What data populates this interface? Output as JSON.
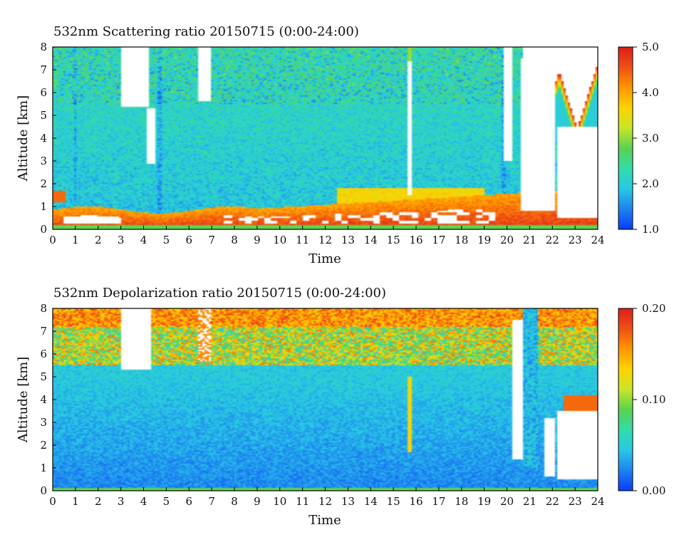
{
  "colors": {
    "colormap": [
      "#0a3cff",
      "#1e82f0",
      "#28c8e6",
      "#32dcaa",
      "#5ad250",
      "#c8e628",
      "#ffd200",
      "#ff9600",
      "#f05014",
      "#dc1e1e"
    ],
    "background": "#ffffff",
    "axis": "#000000"
  },
  "chart_data": [
    {
      "type": "heatmap",
      "title": "532nm Scattering ratio  20150715 (0:00-24:00)",
      "xlabel": "Time",
      "ylabel": "Altitude [km]",
      "x_ticks": [
        "0",
        "1",
        "2",
        "3",
        "4",
        "5",
        "6",
        "7",
        "8",
        "9",
        "10",
        "11",
        "12",
        "13",
        "14",
        "15",
        "16",
        "17",
        "18",
        "19",
        "20",
        "21",
        "22",
        "23",
        "24"
      ],
      "y_ticks": [
        "0",
        "1",
        "2",
        "3",
        "4",
        "5",
        "6",
        "7",
        "8"
      ],
      "xlim": [
        0,
        24
      ],
      "ylim": [
        0,
        8
      ],
      "colorbar": {
        "range": [
          1.0,
          5.0
        ],
        "ticks": [
          "1.0",
          "2.0",
          "3.0",
          "4.0",
          "5.0"
        ]
      }
    },
    {
      "type": "heatmap",
      "title": "532nm Depolarization ratio  20150715 (0:00-24:00)",
      "xlabel": "Time",
      "ylabel": "Altitude [km]",
      "x_ticks": [
        "0",
        "1",
        "2",
        "3",
        "4",
        "5",
        "6",
        "7",
        "8",
        "9",
        "10",
        "11",
        "12",
        "13",
        "14",
        "15",
        "16",
        "17",
        "18",
        "19",
        "20",
        "21",
        "22",
        "23",
        "24"
      ],
      "y_ticks": [
        "0",
        "1",
        "2",
        "3",
        "4",
        "5",
        "6",
        "7",
        "8"
      ],
      "xlim": [
        0,
        24
      ],
      "ylim": [
        0,
        8
      ],
      "colorbar": {
        "range": [
          0.0,
          0.2
        ],
        "ticks": [
          "0.00",
          "0.10",
          "0.20"
        ]
      }
    }
  ]
}
